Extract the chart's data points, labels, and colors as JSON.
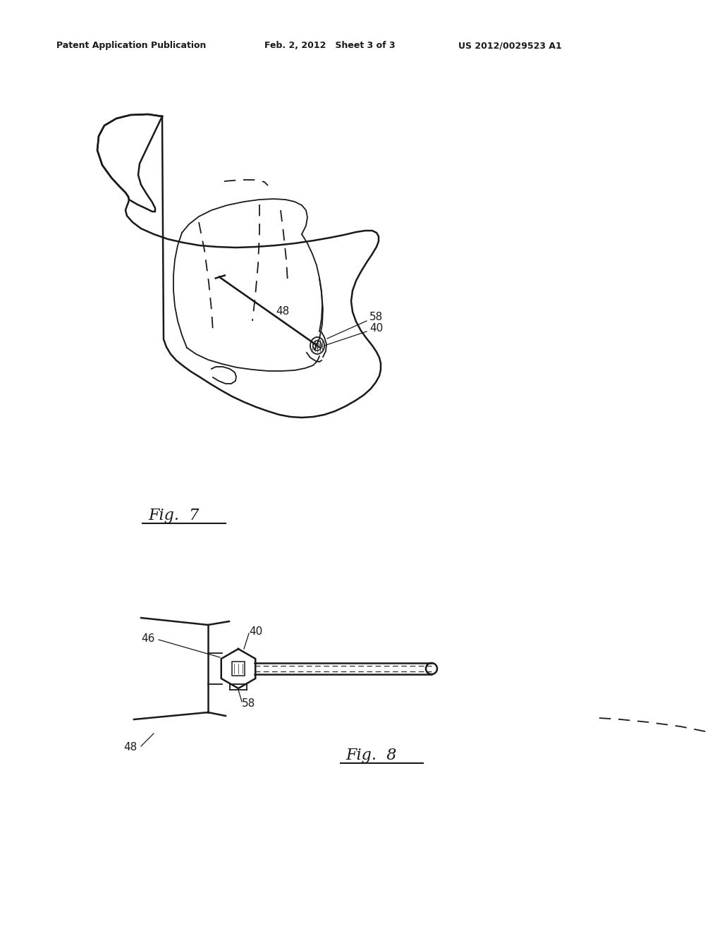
{
  "bg_color": "#ffffff",
  "line_color": "#1a1a1a",
  "header_left": "Patent Application Publication",
  "header_center": "Feb. 2, 2012   Sheet 3 of 3",
  "header_right": "US 2012/0029523 A1",
  "fig7_label": "Fig.  7",
  "fig8_label": "Fig.  8",
  "lw_main": 1.8,
  "lw_thin": 1.3,
  "lw_thick": 2.2
}
